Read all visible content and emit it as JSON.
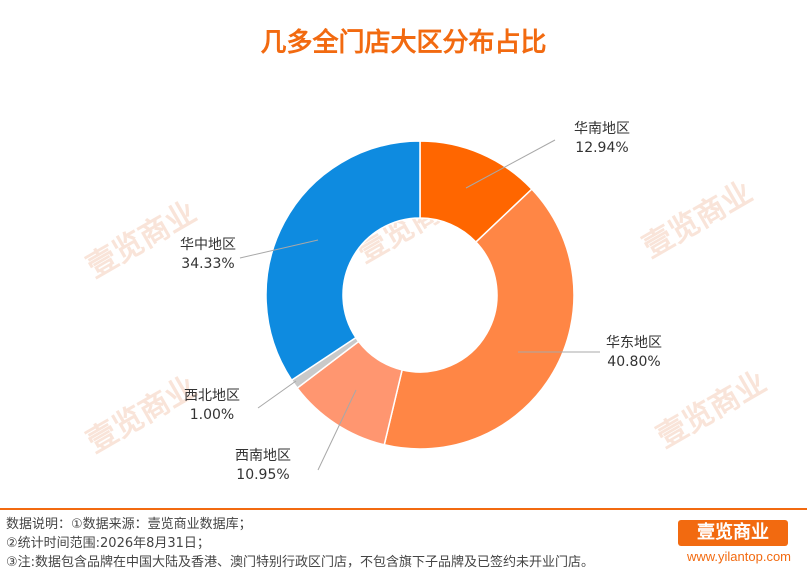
{
  "header": {
    "title": "几多全门店大区分布占比"
  },
  "chart_data": {
    "type": "pie",
    "title": "几多全门店大区分布占比",
    "series": [
      {
        "name": "华南地区",
        "value": 12.94,
        "label": "12.94%",
        "color": "#ff6600"
      },
      {
        "name": "华东地区",
        "value": 40.8,
        "label": "40.80%",
        "color": "#ff8645"
      },
      {
        "name": "西南地区",
        "value": 10.95,
        "label": "10.95%",
        "color": "#ff9670"
      },
      {
        "name": "西北地区",
        "value": 1.0,
        "label": "1.00%",
        "color": "#c9c9c9"
      },
      {
        "name": "华中地区",
        "value": 34.33,
        "label": "34.33%",
        "color": "#0e8be0"
      }
    ]
  },
  "watermark": {
    "text": "壹览商业"
  },
  "footer": {
    "note1": "数据说明：①数据来源：壹览商业数据库；",
    "note2": "②统计时间范围:2026年8月31日；",
    "note3": "③注:数据包含品牌在中国大陆及香港、澳门特别行政区门店，不包含旗下子品牌及已签约未开业门店。",
    "brand": "壹览商业",
    "site": "www.yilantop.com"
  }
}
